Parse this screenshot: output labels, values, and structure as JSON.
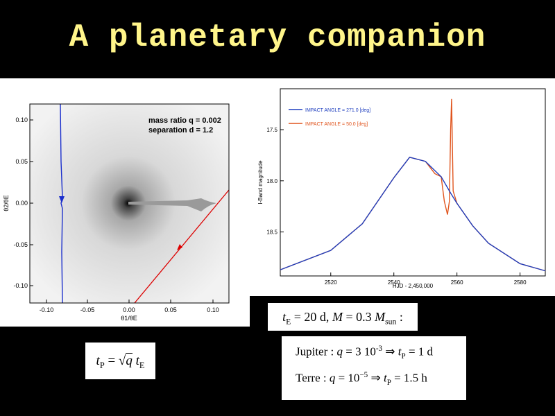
{
  "slide_title": "A planetary companion",
  "left_plot": {
    "annotation_line1": "mass ratio q = 0.002",
    "annotation_line2": "separation d = 1.2",
    "x_ticks": [
      "-0.10",
      "-0.05",
      "0.00",
      "0.05",
      "0.10"
    ],
    "y_ticks": [
      "0.10",
      "0.05",
      "0.00",
      "-0.05",
      "-0.10"
    ],
    "xlabel": "θ1/θE",
    "ylabel": "θ2/θE"
  },
  "chart_data": [
    {
      "type": "line",
      "series": [
        {
          "name": "IMPACT ANGLE = 271.0  [deg]",
          "color": "#1f3fbf",
          "x": [
            2504,
            2520,
            2530,
            2540,
            2545,
            2550,
            2555,
            2558,
            2560,
            2565,
            2570,
            2580,
            2588
          ],
          "y": [
            18.87,
            18.68,
            18.42,
            17.97,
            17.77,
            17.81,
            17.96,
            18.12,
            18.22,
            18.44,
            18.61,
            18.81,
            18.88
          ]
        },
        {
          "name": "IMPACT ANGLE = 50.0  [deg]",
          "color": "#e0551e",
          "x": [
            2504,
            2520,
            2530,
            2540,
            2545,
            2550,
            2553,
            2555,
            2556,
            2557,
            2557.6,
            2558,
            2558.3,
            2558.8,
            2560,
            2565,
            2570,
            2580,
            2588
          ],
          "y": [
            18.87,
            18.68,
            18.42,
            17.97,
            17.77,
            17.81,
            17.93,
            17.96,
            18.2,
            18.33,
            18.2,
            17.5,
            17.2,
            18.1,
            18.22,
            18.44,
            18.61,
            18.81,
            18.88
          ]
        }
      ],
      "xlabel": "HJD - 2,450,000",
      "ylabel": "I-Band magnitude",
      "xlim": [
        2504,
        2588
      ],
      "ylim": [
        18.93,
        17.1
      ],
      "x_ticks": [
        2520,
        2540,
        2560,
        2580
      ],
      "y_ticks": [
        17.5,
        18.0,
        18.5
      ],
      "legend": "top-left"
    }
  ],
  "equations": {
    "te_prefix": "t",
    "te_sub": "E",
    "te_mid": " = 20 d, ",
    "m_symbol": "M",
    "m_mid": " = 0.3 ",
    "msun_sub": "sun",
    "te_tail": " :",
    "tp_t": "t",
    "tp_sub": "P",
    "tp_eq": " = ",
    "tp_q": "q",
    "tp_te": "t",
    "tp_te_sub": "E",
    "jup_label": "Jupiter : ",
    "jup_q": "q",
    "jup_val": " = 3 10",
    "jup_exp": "-3",
    "jup_arrow": " ⇒ ",
    "jup_t": "t",
    "jup_tsub": "P",
    "jup_res": " = 1 d",
    "terre_label": "Terre : ",
    "terre_q": "q",
    "terre_val": " = 10",
    "terre_exp": "−5",
    "terre_arrow": " ⇒ ",
    "terre_t": "t",
    "terre_tsub": "P",
    "terre_res": " = 1.5 h"
  }
}
